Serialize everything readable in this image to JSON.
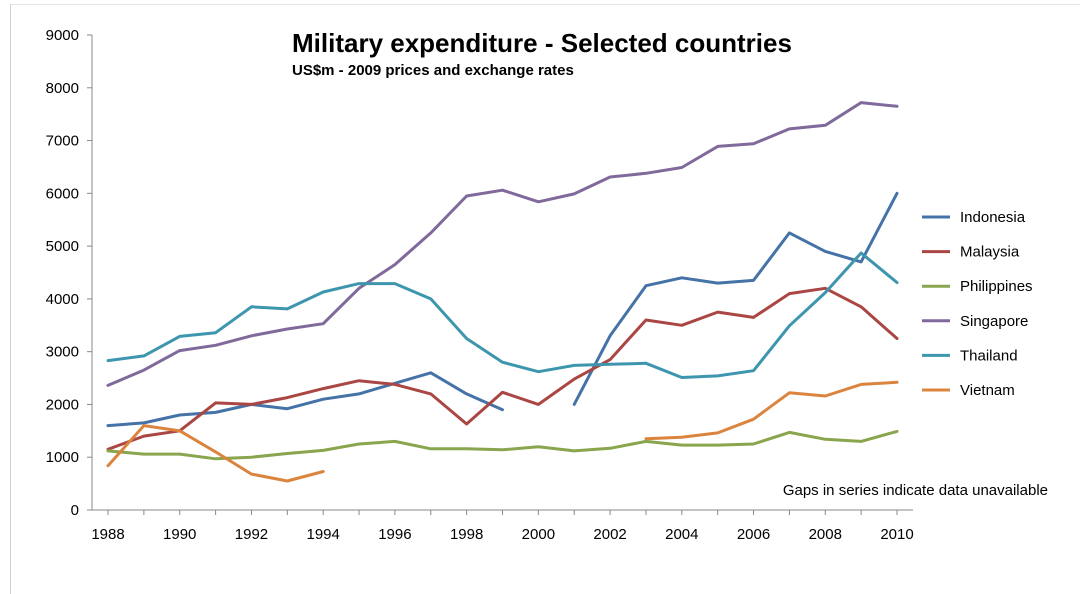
{
  "chart_data": {
    "type": "line",
    "title": "Military expenditure - Selected countries",
    "subtitle": "US$m - 2009 prices and exchange  rates",
    "note": "Gaps in series indicate data unavailable",
    "xlabel": "",
    "ylabel": "",
    "xlim": [
      1988,
      2010
    ],
    "ylim": [
      0,
      9000
    ],
    "grid": false,
    "legend_position": "right",
    "x_ticks": [
      "1988",
      "1990",
      "1992",
      "1994",
      "1996",
      "1998",
      "2000",
      "2002",
      "2004",
      "2006",
      "2008",
      "2010"
    ],
    "y_ticks": [
      "0",
      "1000",
      "2000",
      "3000",
      "4000",
      "5000",
      "6000",
      "7000",
      "8000",
      "9000"
    ],
    "x": [
      1988,
      1989,
      1990,
      1991,
      1992,
      1993,
      1994,
      1995,
      1996,
      1997,
      1998,
      1999,
      2000,
      2001,
      2002,
      2003,
      2004,
      2005,
      2006,
      2007,
      2008,
      2009,
      2010
    ],
    "series": [
      {
        "name": "Indonesia",
        "color": "#4572A7",
        "values": [
          1600,
          1650,
          1800,
          1850,
          2000,
          1920,
          2100,
          2200,
          2400,
          2600,
          2200,
          1900,
          null,
          2000,
          3300,
          4250,
          4400,
          4300,
          4350,
          5250,
          4900,
          4700,
          6000
        ]
      },
      {
        "name": "Malaysia",
        "color": "#AA4643",
        "values": [
          1150,
          1400,
          1500,
          2030,
          2000,
          2130,
          2300,
          2450,
          2380,
          2200,
          1630,
          2230,
          2000,
          2480,
          2850,
          3600,
          3500,
          3750,
          3650,
          4100,
          4200,
          3850,
          3250
        ]
      },
      {
        "name": "Philippines",
        "color": "#89A54E",
        "values": [
          1120,
          1060,
          1060,
          970,
          1000,
          1070,
          1130,
          1250,
          1300,
          1160,
          1160,
          1140,
          1200,
          1120,
          1170,
          1300,
          1230,
          1230,
          1250,
          1470,
          1340,
          1300,
          1490
        ]
      },
      {
        "name": "Singapore",
        "color": "#80699B",
        "values": [
          2360,
          2650,
          3020,
          3120,
          3300,
          3430,
          3530,
          4200,
          4650,
          5250,
          5950,
          6060,
          5840,
          5990,
          6310,
          6380,
          6490,
          6890,
          6940,
          7220,
          7290,
          7720,
          7650
        ]
      },
      {
        "name": "Thailand",
        "color": "#3D96AE",
        "values": [
          2830,
          2920,
          3290,
          3360,
          3850,
          3810,
          4130,
          4290,
          4290,
          4000,
          3250,
          2800,
          2620,
          2740,
          2760,
          2780,
          2510,
          2540,
          2640,
          3490,
          4120,
          4870,
          4310
        ]
      },
      {
        "name": "Vietnam",
        "color": "#DB843D",
        "values": [
          840,
          1600,
          1500,
          1100,
          680,
          550,
          730,
          null,
          null,
          null,
          null,
          null,
          null,
          null,
          null,
          1350,
          1380,
          1460,
          1720,
          2220,
          2160,
          2380,
          2420
        ]
      }
    ]
  }
}
